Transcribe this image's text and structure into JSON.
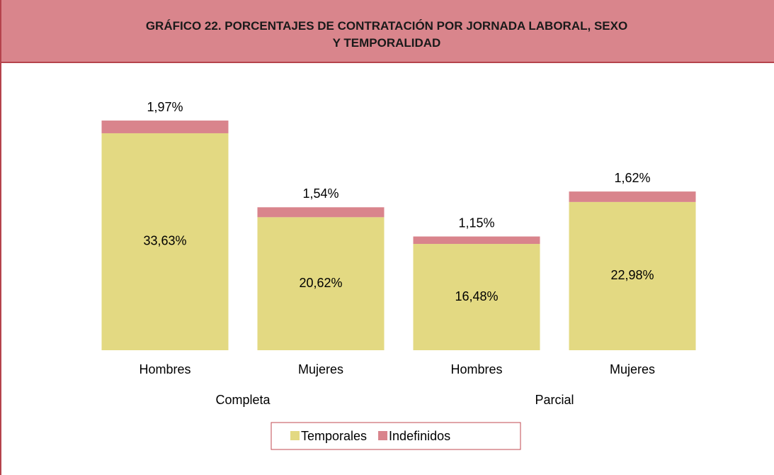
{
  "chart_data": {
    "type": "stacked_bar",
    "title": "GRÁFICO 22. PORCENTAJES DE CONTRATACIÓN POR JORNADA LABORAL, SEXO Y TEMPORALIDAD",
    "categories": [
      "Hombres",
      "Mujeres",
      "Hombres",
      "Mujeres"
    ],
    "groups": [
      {
        "name": "Completa",
        "size": 2
      },
      {
        "name": "Parcial",
        "size": 2
      }
    ],
    "series": [
      {
        "name": "Temporales",
        "color": "#e3d982",
        "values": [
          33.63,
          20.62,
          16.48,
          22.98
        ],
        "value_labels": [
          "33,63%",
          "20,62%",
          "16,48%",
          "22,98%"
        ]
      },
      {
        "name": "Indefinidos",
        "color": "#d9848c",
        "values": [
          1.97,
          1.54,
          1.15,
          1.62
        ],
        "value_labels": [
          "1,97%",
          "1,54%",
          "1,15%",
          "1,62%"
        ]
      }
    ],
    "ylim": [
      0,
      40
    ]
  }
}
